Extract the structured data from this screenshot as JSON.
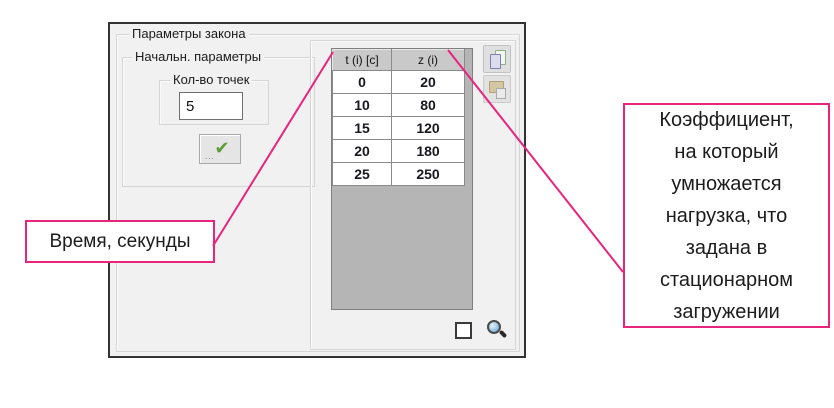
{
  "dialog": {
    "law_group_title": "Параметры закона",
    "initial_group_title": "Начальн. параметры",
    "points_group_title": "Кол-во точек",
    "points_value": "5",
    "apply_button": {
      "check_glyph": "✔",
      "dots": "..."
    },
    "table": {
      "headers": [
        "t (i) [c]",
        "z (i)"
      ],
      "rows": [
        [
          "0",
          "20"
        ],
        [
          "10",
          "80"
        ],
        [
          "15",
          "120"
        ],
        [
          "20",
          "180"
        ],
        [
          "25",
          "250"
        ]
      ]
    },
    "icons": [
      "copy-pages-icon",
      "paste-clipboard-icon",
      "magnifier-icon",
      "green-check-icon"
    ],
    "zoom_checkbox_checked": false
  },
  "annotations": {
    "left_callout_text": "Время, секунды",
    "right_callout_lines": [
      "Коэффициент,",
      "на который",
      "умножается",
      "нагрузка, что",
      "задана в",
      "стационарном",
      "загружении"
    ],
    "accent_color": "#e8247c"
  },
  "colors": {
    "dialog_background": "#f1f1f1",
    "dialog_border": "#333333",
    "table_header": "#c9c9c9",
    "table_filler": "#b5b5b5",
    "check_green": "#5d9c38"
  }
}
